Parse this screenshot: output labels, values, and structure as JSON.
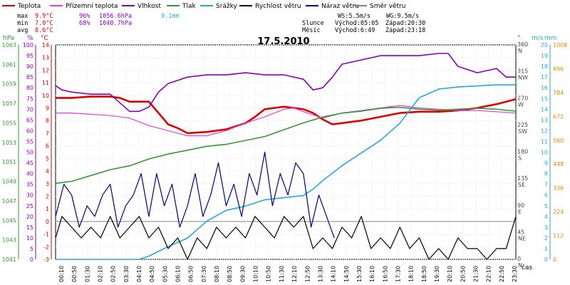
{
  "title": "17.5.2010",
  "legend": [
    {
      "label": "Teplota",
      "color": "#e00000"
    },
    {
      "label": "Přízemní teplota",
      "color": "#e040e0"
    },
    {
      "label": "Vlhkost",
      "color": "#8800bb"
    },
    {
      "label": "Tlak",
      "color": "#339933"
    },
    {
      "label": "Srážky",
      "color": "#22aadd"
    },
    {
      "label": "Rychlost větru",
      "color": "#000000"
    },
    {
      "label": "Náraz větru",
      "color": "#000088"
    },
    {
      "label": "Směr větru",
      "color": "#808080"
    }
  ],
  "stats": {
    "rows": [
      {
        "label": "max",
        "temp": "9.9°C",
        "hum": "96%",
        "press": "1056.6hPa",
        "rain": "9.1mm"
      },
      {
        "label": "min",
        "temp": "7.0°C",
        "hum": "68%",
        "press": "1048.7hPa",
        "rain": ""
      },
      {
        "label": "avg",
        "temp": "8.6°C",
        "hum": "",
        "press": "",
        "rain": ""
      }
    ],
    "ws": "WS:5.5m/s",
    "wg": "WG:9.5m/s",
    "sun_label": "Slunce",
    "sun_rise": "Východ:05:05",
    "sun_set": "Západ:20:30",
    "moon_label": "Měsíc",
    "moon_rise": "Východ:6:49",
    "moon_set": "Západ:23:18"
  },
  "axes": {
    "hpa_title": "hPa",
    "pct_title": "%",
    "degc_title": "°C",
    "deg_title": "°",
    "ms_title": "m/s",
    "mm_title": "mm",
    "time_title": "čas",
    "hpa_ticks": [
      "1063",
      "1061",
      "1059",
      "1057",
      "1055",
      "1053",
      "1051",
      "1049",
      "1047",
      "1045",
      "1043",
      "1041"
    ],
    "pct_ticks": [
      "100",
      "95",
      "90",
      "85",
      "80",
      "75",
      "70",
      "65",
      "60",
      "55",
      "50",
      "45",
      "40",
      "35",
      "30",
      "25",
      "20",
      "15",
      "10",
      "5",
      "0"
    ],
    "degc_ticks": [
      "14",
      "13",
      "12",
      "11",
      "10",
      "9",
      "8",
      "7",
      "6",
      "5",
      "4",
      "3",
      "2",
      "1",
      "0",
      "-1",
      "-2",
      "-3"
    ],
    "deg_ticks": [
      {
        "num": "360",
        "dir": "N"
      },
      {
        "num": "315",
        "dir": "NW"
      },
      {
        "num": "270",
        "dir": "W"
      },
      {
        "num": "225",
        "dir": "SW"
      },
      {
        "num": "180",
        "dir": "S"
      },
      {
        "num": "135",
        "dir": "SE"
      },
      {
        "num": "90",
        "dir": "E"
      },
      {
        "num": "45",
        "dir": "NE"
      },
      {
        "num": "0",
        "dir": "N"
      }
    ],
    "ms_ticks": [
      "20",
      "19",
      "18",
      "17",
      "16",
      "15",
      "14",
      "13",
      "12",
      "11",
      "10",
      "9",
      "8",
      "7",
      "6",
      "5",
      "4",
      "3",
      "2",
      "1",
      "0"
    ],
    "mm_ticks": [
      "1008",
      "896",
      "784",
      "672",
      "560",
      "448",
      "336",
      "224",
      "112",
      "0"
    ],
    "time_ticks": [
      "00:10",
      "00:50",
      "01:30",
      "02:10",
      "02:50",
      "03:30",
      "04:10",
      "04:50",
      "05:30",
      "06:10",
      "06:50",
      "07:30",
      "08:10",
      "08:50",
      "09:30",
      "10:10",
      "10:50",
      "11:30",
      "12:10",
      "12:50",
      "13:30",
      "14:10",
      "14:50",
      "15:30",
      "16:10",
      "16:50",
      "17:30",
      "18:10",
      "18:50",
      "19:30",
      "20:10",
      "20:50",
      "21:30",
      "22:10",
      "22:50",
      "23:30"
    ]
  },
  "chart_data": {
    "type": "line",
    "title": "17.5.2010",
    "x_unit": "hour of day",
    "xlim": [
      0.17,
      24
    ],
    "series": [
      {
        "name": "Teplota",
        "axis": "°C",
        "ylim": [
          -3,
          14
        ],
        "color": "#e00000",
        "x": [
          0.17,
          1,
          2,
          3,
          3.5,
          4,
          5,
          5.5,
          6,
          6.5,
          7,
          8,
          9,
          10,
          10.5,
          11,
          11.5,
          12,
          12.5,
          13,
          13.5,
          14,
          14.5,
          15,
          16,
          17,
          18,
          19,
          20,
          21,
          21.5,
          22,
          23,
          23.5,
          24
        ],
        "y": [
          9.8,
          9.8,
          9.9,
          9.9,
          9.8,
          9.5,
          9.5,
          8.6,
          7.7,
          7.4,
          7.0,
          7.1,
          7.3,
          7.8,
          8.3,
          8.9,
          9.0,
          9.1,
          9.0,
          8.9,
          8.6,
          8.1,
          7.7,
          7.8,
          8.0,
          8.3,
          8.6,
          8.7,
          8.7,
          8.8,
          8.9,
          9.0,
          9.3,
          9.5,
          9.7
        ]
      },
      {
        "name": "Přízemní teplota",
        "axis": "°C",
        "ylim": [
          -3,
          14
        ],
        "color": "#e040e0",
        "x": [
          0.17,
          1,
          2,
          3,
          4,
          5,
          6,
          7,
          8,
          9,
          10,
          11,
          12,
          12.5,
          13,
          14,
          15,
          16,
          17,
          18,
          19,
          20,
          21,
          22,
          23,
          24
        ],
        "y": [
          8.6,
          8.6,
          8.5,
          8.4,
          8.2,
          7.6,
          7.2,
          6.8,
          6.8,
          7.2,
          7.8,
          8.3,
          8.9,
          9.0,
          8.7,
          8.2,
          8.6,
          8.8,
          9.0,
          9.2,
          9.0,
          8.9,
          8.8,
          8.8,
          8.7,
          8.6
        ]
      },
      {
        "name": "Vlhkost",
        "axis": "%",
        "ylim": [
          0,
          100
        ],
        "color": "#8800bb",
        "x": [
          0.17,
          0.5,
          1,
          2,
          3,
          3.5,
          4,
          4.5,
          5,
          5.5,
          6,
          7,
          8,
          9,
          10,
          11,
          12,
          13,
          13.5,
          14,
          14.5,
          15,
          16,
          17,
          18,
          19,
          20,
          20.5,
          21,
          22,
          23,
          23.5,
          24
        ],
        "y": [
          81,
          79,
          78,
          77,
          77,
          73,
          69,
          69,
          71,
          78,
          82,
          85,
          86,
          86,
          87,
          86,
          86,
          84,
          79,
          80,
          85,
          91,
          93,
          95,
          95,
          95,
          96,
          96,
          90,
          87,
          89,
          85,
          85
        ]
      },
      {
        "name": "Tlak",
        "axis": "hPa",
        "ylim": [
          1041,
          1063
        ],
        "color": "#339933",
        "x": [
          0.17,
          1,
          2,
          3,
          4,
          5,
          6,
          7,
          8,
          9,
          10,
          11,
          12,
          13,
          14,
          15,
          16,
          17,
          18,
          19,
          20,
          21,
          22,
          23,
          24
        ],
        "y": [
          1048.8,
          1049.0,
          1049.6,
          1050.2,
          1050.6,
          1051.3,
          1051.8,
          1052.2,
          1052.6,
          1052.8,
          1053.2,
          1053.6,
          1054.3,
          1055.0,
          1055.6,
          1056.0,
          1056.2,
          1056.5,
          1056.6,
          1056.4,
          1056.3,
          1056.4,
          1056.5,
          1056.4,
          1056.2
        ]
      },
      {
        "name": "Srážky",
        "axis": "mm",
        "ylim": [
          0,
          1008
        ],
        "color": "#22aadd",
        "x": [
          0.17,
          4.5,
          5,
          6,
          7,
          8,
          9,
          10,
          11,
          12,
          13,
          13.5,
          14,
          15,
          16,
          17,
          18,
          18.5,
          19,
          20,
          21,
          22,
          23,
          24
        ],
        "y": [
          0,
          0,
          15,
          60,
          100,
          180,
          230,
          250,
          280,
          290,
          300,
          330,
          370,
          440,
          500,
          560,
          640,
          700,
          760,
          800,
          810,
          815,
          820,
          820
        ]
      },
      {
        "name": "Náraz větru",
        "axis": "m/s",
        "ylim": [
          0,
          20
        ],
        "color": "#000088",
        "x": [
          0.17,
          0.6,
          1,
          1.4,
          1.8,
          2.2,
          2.6,
          3.0,
          3.4,
          3.8,
          4.2,
          4.6,
          5.0,
          5.4,
          5.8,
          6.2,
          6.6,
          7.0,
          7.4,
          7.8,
          8.2,
          8.6,
          9.0,
          9.4,
          9.8,
          10.2,
          10.6,
          11.0,
          11.4,
          11.8,
          12.2,
          12.6,
          13.0,
          13.4,
          13.8,
          14.2,
          14.6
        ],
        "y": [
          4,
          7,
          6,
          3,
          5,
          4,
          6,
          7,
          3,
          5,
          6,
          8,
          4,
          8,
          5,
          7,
          3,
          5,
          8,
          4,
          6,
          9,
          5,
          7,
          4,
          8,
          6,
          10,
          5,
          8,
          6,
          9,
          8,
          3,
          6,
          4,
          2
        ]
      },
      {
        "name": "Rychlost větru",
        "axis": "m/s",
        "ylim": [
          0,
          20
        ],
        "color": "#000000",
        "x": [
          0.17,
          0.5,
          1,
          1.5,
          2,
          2.5,
          3,
          3.5,
          4,
          4.5,
          5,
          5.5,
          6,
          6.5,
          7,
          7.5,
          8,
          8.5,
          9,
          9.5,
          10,
          10.5,
          11,
          11.5,
          12,
          12.5,
          13,
          13.5,
          14,
          14.5,
          15,
          15.5,
          16,
          16.5,
          17,
          17.5,
          18,
          18.5,
          19,
          19.5,
          20,
          20.5,
          21,
          21.5,
          22,
          22.5,
          23,
          23.5,
          24
        ],
        "y": [
          2,
          4,
          3,
          2,
          3,
          2,
          4,
          2,
          3,
          4,
          2,
          3,
          1,
          2,
          0,
          2,
          1,
          3,
          2,
          3,
          2,
          4,
          3,
          2,
          4,
          3,
          4,
          1,
          2,
          1,
          3,
          2,
          4,
          1,
          2,
          1,
          3,
          1,
          2,
          0,
          1,
          0,
          2,
          1,
          1,
          0,
          1,
          1,
          4
        ]
      }
    ]
  }
}
